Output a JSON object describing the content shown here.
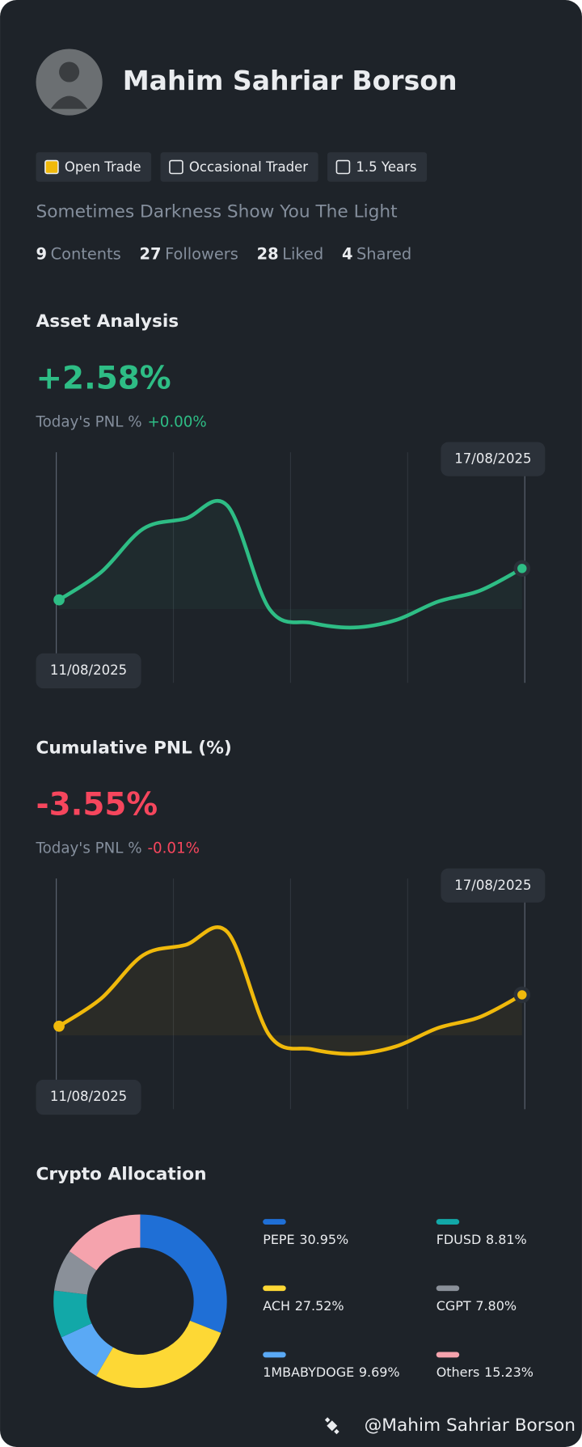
{
  "profile": {
    "name": "Mahim Sahriar Borson",
    "badges": [
      "Open Trade",
      "Occasional Trader",
      "1.5 Years"
    ],
    "bio": "Sometimes Darkness Show You The Light",
    "stats": [
      {
        "count": 9,
        "label": "Contents"
      },
      {
        "count": 27,
        "label": "Followers"
      },
      {
        "count": 28,
        "label": "Liked"
      },
      {
        "count": 4,
        "label": "Shared"
      }
    ]
  },
  "charts": [
    {
      "type": "line",
      "title": "Asset Analysis",
      "headline": "+2.58%",
      "pnl_label": "Today's PNL %",
      "pnl": "+0.00%",
      "start_date": "11/08/2025",
      "end_date": "17/08/2025",
      "color": "#2ebd85",
      "headline_color": "#2ebd85",
      "values": [
        5,
        8,
        12.7,
        13.8,
        15.2,
        4,
        2.5,
        2,
        2.8,
        4.8,
        6,
        8.4
      ],
      "ylim": [
        -4,
        21
      ]
    },
    {
      "type": "line",
      "title": "Cumulative PNL (%)",
      "headline": "-3.55%",
      "pnl_label": "Today's PNL %",
      "pnl": "-0.01%",
      "start_date": "11/08/2025",
      "end_date": "17/08/2025",
      "color": "#f0b90b",
      "headline_color": "#f6465d",
      "values": [
        5,
        8,
        12.7,
        13.8,
        15.2,
        4,
        2.5,
        2,
        2.8,
        4.8,
        6,
        8.4
      ],
      "ylim": [
        -4,
        21
      ]
    }
  ],
  "allocation": {
    "type": "pie",
    "title": "Crypto Allocation",
    "categories": [
      "PEPE",
      "ACH",
      "1MBABYDOGE",
      "FDUSD",
      "CGPT",
      "Others"
    ],
    "values": [
      30.95,
      27.52,
      9.69,
      8.81,
      7.8,
      15.23
    ],
    "value_labels": [
      "30.95%",
      "27.52%",
      "9.69%",
      "8.81%",
      "7.80%",
      "15.23%"
    ],
    "colors": [
      "#1f6fd6",
      "#fdd835",
      "#5aa9f5",
      "#12a8a8",
      "#8a9099",
      "#f5a3ad"
    ]
  },
  "footer": "@Mahim Sahriar Borson"
}
